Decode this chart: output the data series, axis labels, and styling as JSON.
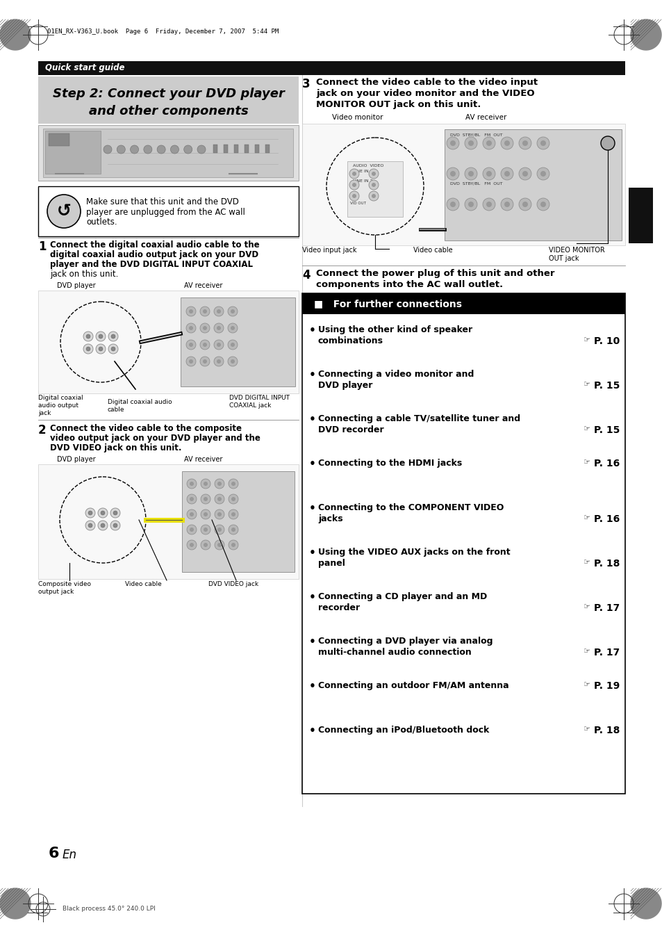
{
  "page_bg": "#ffffff",
  "header_bar_color": "#111111",
  "header_text": "Quick start guide",
  "header_text_color": "#ffffff",
  "title_box_color": "#cccccc",
  "title_line1": "Step 2: Connect your DVD player",
  "title_line2": "and other components",
  "section_header_text": "■   For further connections",
  "section_header_text_color": "#ffffff",
  "section_header_bg": "#000000",
  "bullet_items": [
    {
      "text1": "Using the other kind of speaker",
      "text2": "combinations",
      "page": "P. 10",
      "page_right": true
    },
    {
      "text1": "Connecting a video monitor and",
      "text2": "DVD player",
      "page": "P. 15",
      "page_right": true
    },
    {
      "text1": "Connecting a cable TV/satellite tuner and",
      "text2": "DVD recorder",
      "page": "P. 15",
      "page_right": true
    },
    {
      "text1": "Connecting to the HDMI jacks",
      "text2": "",
      "page": "P. 16",
      "page_right": true
    },
    {
      "text1": "Connecting to the COMPONENT VIDEO",
      "text2": "jacks",
      "page": "P. 16",
      "page_right": true
    },
    {
      "text1": "Using the VIDEO AUX jacks on the front",
      "text2": "panel",
      "page": "P. 18",
      "page_right": true
    },
    {
      "text1": "Connecting a CD player and an MD",
      "text2": "recorder",
      "page": "P. 17",
      "page_right": true
    },
    {
      "text1": "Connecting a DVD player via analog",
      "text2": "multi-channel audio connection",
      "page": "P. 17",
      "page_right": false
    },
    {
      "text1": "Connecting an outdoor FM/AM antenna",
      "text2": "",
      "page": "P. 19",
      "page_right": false
    },
    {
      "text1": "Connecting an iPod/Bluetooth dock",
      "text2": "",
      "page": "P. 18",
      "page_right": false
    }
  ],
  "step1_text_lines": [
    "Connect the digital coaxial audio cable to the",
    "digital coaxial audio output jack on your DVD",
    "player and the DVD DIGITAL INPUT COAXIAL",
    "jack on this unit."
  ],
  "step2_text_lines": [
    "Connect the video cable to the composite",
    "video output jack on your DVD player and the",
    "DVD VIDEO jack on this unit."
  ],
  "step3_text_lines": [
    "Connect the video cable to the video input",
    "jack on your video monitor and the VIDEO",
    "MONITOR OUT jack on this unit."
  ],
  "step4_text_lines": [
    "Connect the power plug of this unit and other",
    "components into the AC wall outlet."
  ],
  "warning_text_lines": [
    "Make sure that this unit and the DVD",
    "player are unplugged from the AC wall",
    "outlets."
  ],
  "page_number": "6",
  "print_info": "01EN_RX-V363_U.book  Page 6  Friday, December 7, 2007  5:44 PM",
  "black_process": "Black process 45.0° 240.0 LPI"
}
